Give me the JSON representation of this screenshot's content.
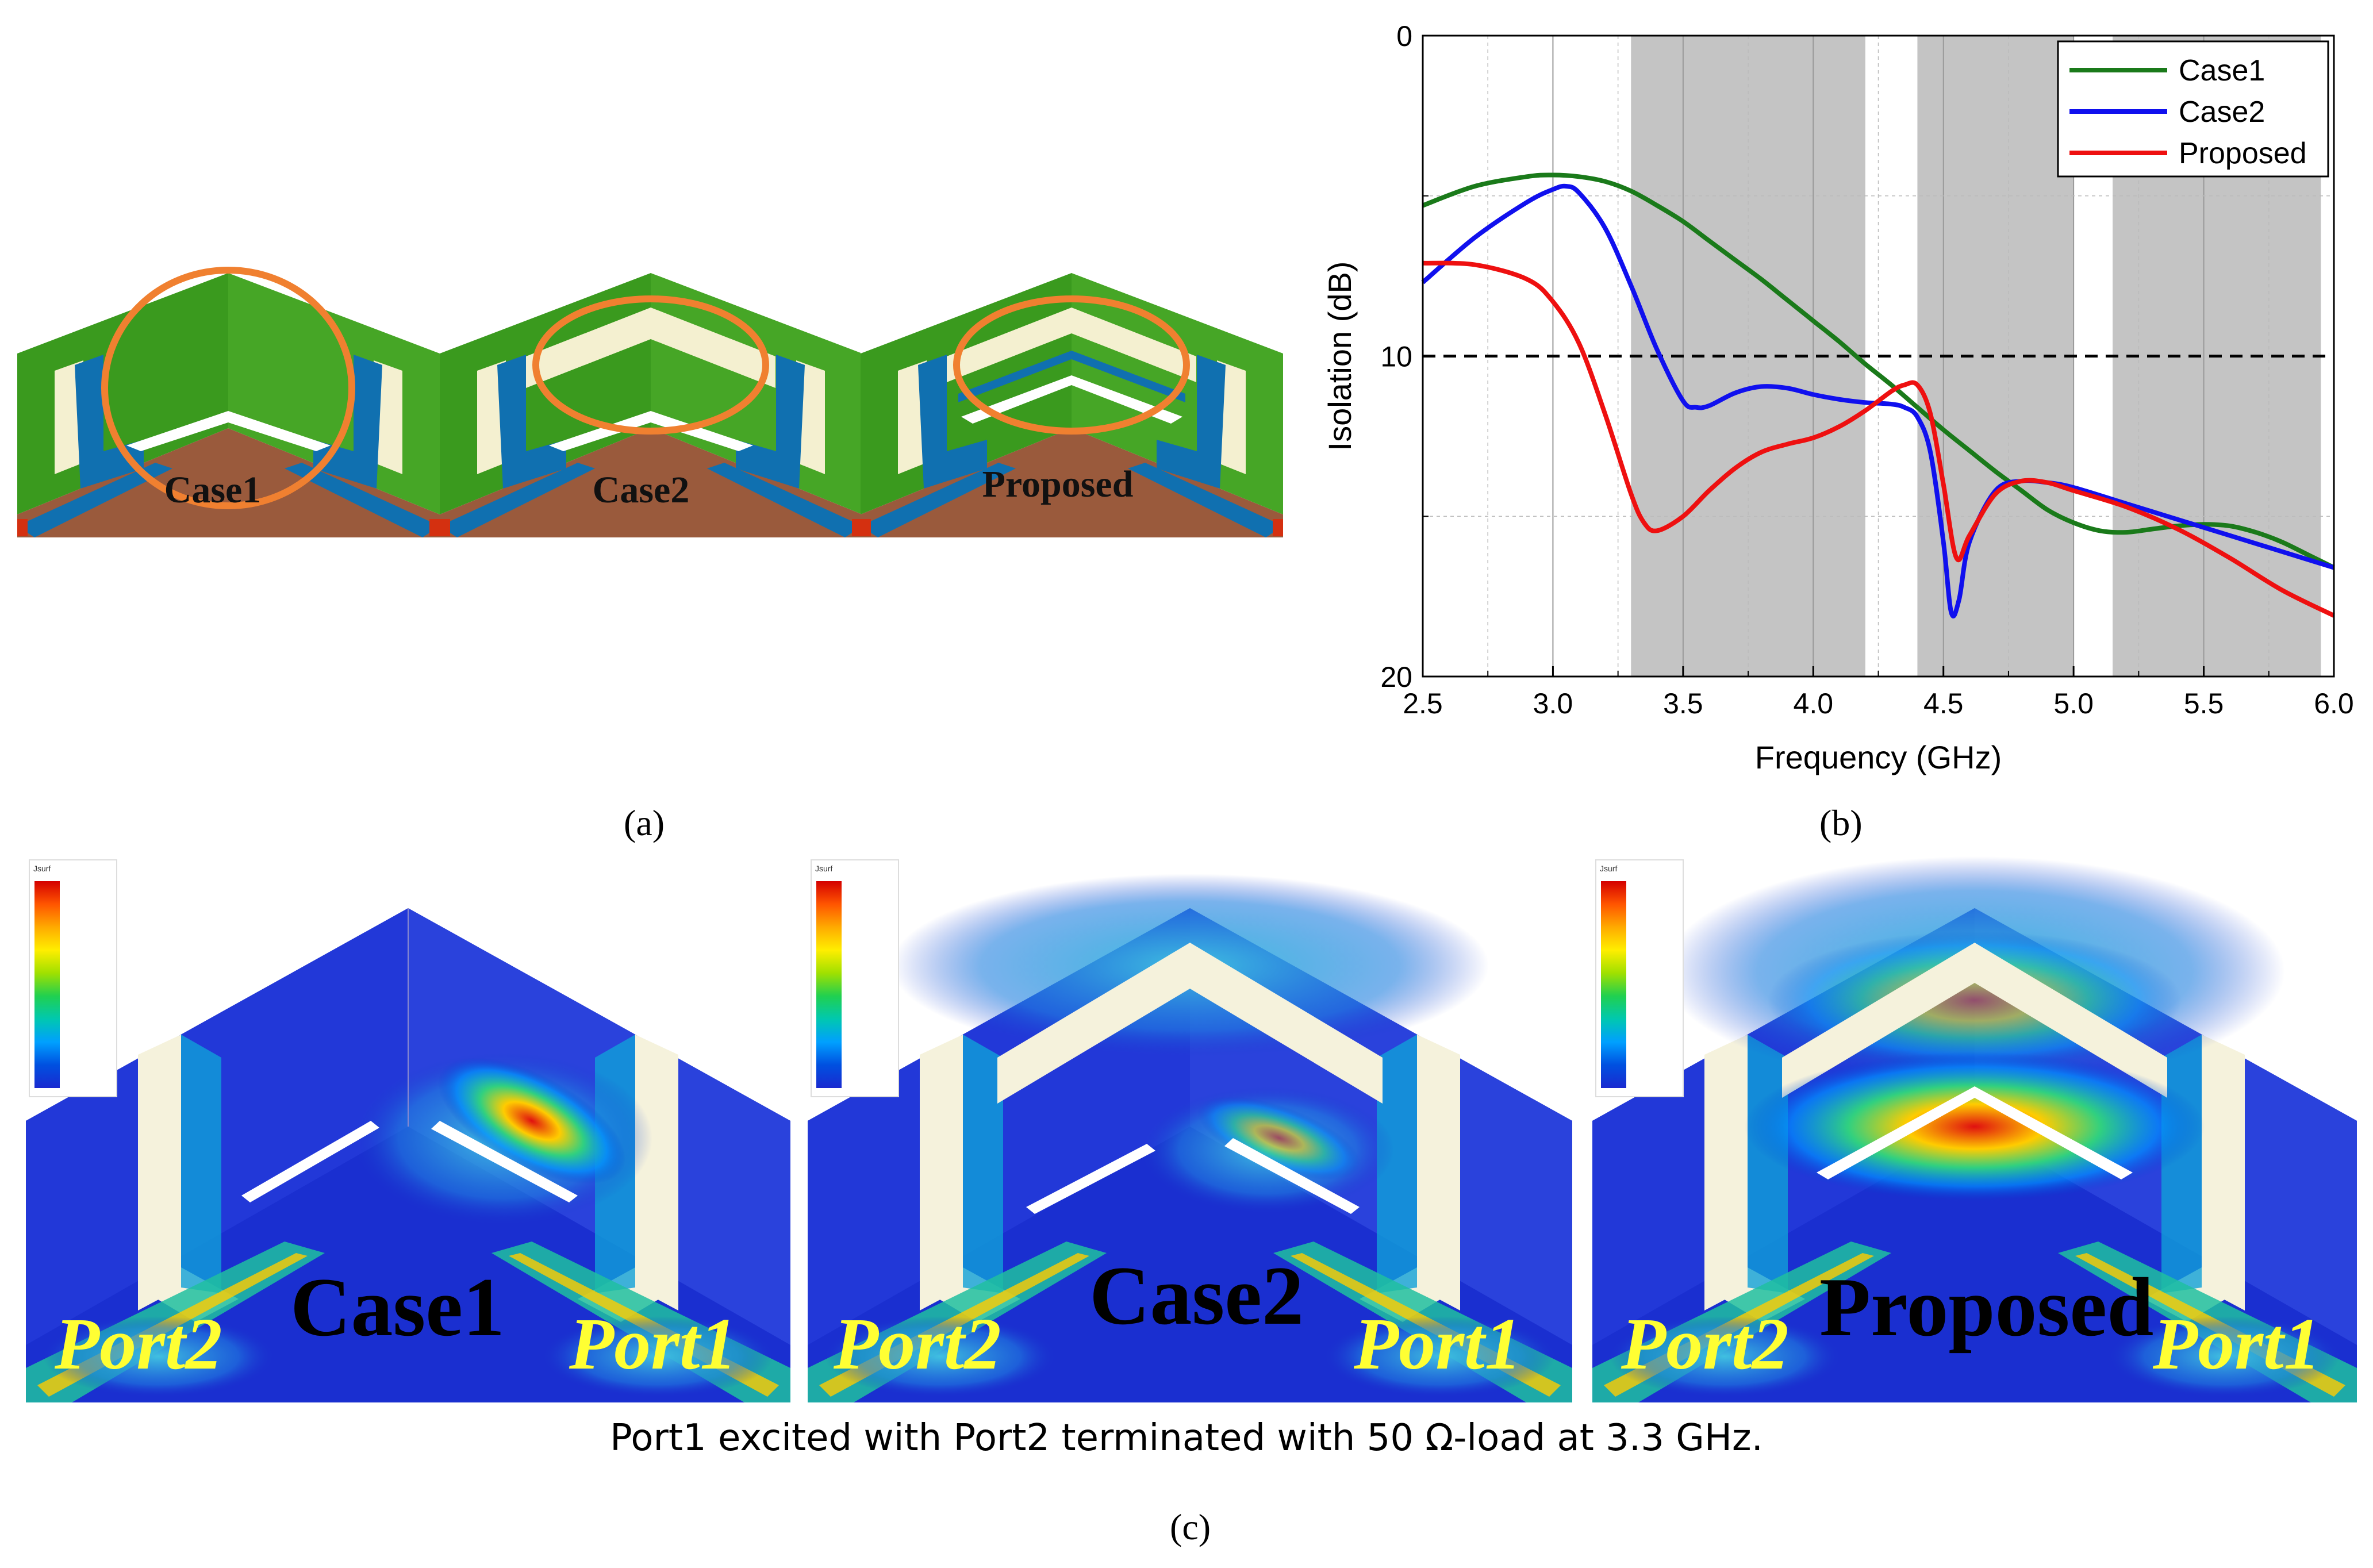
{
  "panel_a": {
    "label": "(a)",
    "cases": [
      {
        "label": "Case1"
      },
      {
        "label": "Case2"
      },
      {
        "label": "Proposed"
      }
    ]
  },
  "panel_b": {
    "label": "(b)"
  },
  "chart_data": {
    "type": "line",
    "xlabel": "Frequency (GHz)",
    "ylabel": "Isolation (dB)",
    "xlim": [
      2.5,
      6.0
    ],
    "ylim": [
      0,
      20
    ],
    "y_inverted": true,
    "x_ticks": [
      "2.5",
      "3.0",
      "3.5",
      "4.0",
      "4.5",
      "5.0",
      "5.5",
      "6.0"
    ],
    "y_ticks": [
      "0",
      "10",
      "20"
    ],
    "reference_line_y": 10,
    "shaded_bands": [
      [
        3.3,
        4.2
      ],
      [
        4.4,
        5.0
      ],
      [
        5.15,
        5.95
      ]
    ],
    "legend_position": "top-right",
    "grid": true,
    "series": [
      {
        "name": "Case1",
        "color": "#1a7a1a",
        "x": [
          2.5,
          2.7,
          2.9,
          3.0,
          3.1,
          3.2,
          3.3,
          3.4,
          3.5,
          3.6,
          3.7,
          3.8,
          3.9,
          4.0,
          4.1,
          4.2,
          4.3,
          4.4,
          4.5,
          4.6,
          4.7,
          4.8,
          4.9,
          5.0,
          5.1,
          5.2,
          5.3,
          5.4,
          5.5,
          5.6,
          5.7,
          5.8,
          5.9,
          6.0
        ],
        "y": [
          5.3,
          4.7,
          4.4,
          4.35,
          4.4,
          4.55,
          4.85,
          5.3,
          5.8,
          6.4,
          7.0,
          7.6,
          8.25,
          8.9,
          9.55,
          10.25,
          10.9,
          11.6,
          12.3,
          12.95,
          13.6,
          14.2,
          14.8,
          15.2,
          15.45,
          15.5,
          15.4,
          15.3,
          15.25,
          15.3,
          15.5,
          15.8,
          16.2,
          16.6
        ]
      },
      {
        "name": "Case2",
        "color": "#1010ee",
        "x": [
          2.5,
          2.7,
          2.9,
          3.0,
          3.05,
          3.1,
          3.2,
          3.3,
          3.4,
          3.5,
          3.55,
          3.6,
          3.7,
          3.8,
          3.9,
          4.0,
          4.1,
          4.2,
          4.3,
          4.35,
          4.4,
          4.45,
          4.5,
          4.53,
          4.56,
          4.6,
          4.7,
          4.8,
          4.9,
          5.0,
          5.2,
          5.4,
          5.6,
          5.8,
          6.0
        ],
        "y": [
          7.7,
          6.3,
          5.2,
          4.8,
          4.7,
          4.9,
          6.0,
          7.8,
          9.8,
          11.4,
          11.6,
          11.55,
          11.15,
          10.95,
          11.0,
          11.2,
          11.35,
          11.45,
          11.5,
          11.6,
          11.9,
          13.0,
          15.8,
          18.0,
          17.6,
          15.8,
          14.2,
          13.9,
          13.95,
          14.1,
          14.6,
          15.1,
          15.6,
          16.1,
          16.6
        ]
      },
      {
        "name": "Proposed",
        "color": "#ee1010",
        "x": [
          2.5,
          2.7,
          2.9,
          3.0,
          3.1,
          3.2,
          3.3,
          3.35,
          3.4,
          3.5,
          3.6,
          3.7,
          3.8,
          3.9,
          4.0,
          4.1,
          4.2,
          4.3,
          4.35,
          4.4,
          4.45,
          4.5,
          4.55,
          4.6,
          4.7,
          4.8,
          4.9,
          5.0,
          5.2,
          5.4,
          5.6,
          5.8,
          6.0
        ],
        "y": [
          7.1,
          7.15,
          7.6,
          8.3,
          9.6,
          11.8,
          14.3,
          15.2,
          15.45,
          15.0,
          14.2,
          13.5,
          13.0,
          12.75,
          12.55,
          12.2,
          11.7,
          11.1,
          10.9,
          10.9,
          11.8,
          14.0,
          16.3,
          15.6,
          14.3,
          13.9,
          13.95,
          14.2,
          14.7,
          15.4,
          16.3,
          17.3,
          18.1
        ]
      }
    ]
  },
  "panel_c": {
    "label": "(c)",
    "caption": "Port1 excited with Port2 terminated with 50 Ω-load at 3.3 GHz.",
    "colorbar_header": "Jsurf",
    "sims": [
      {
        "title": "Case1",
        "port_left": "Port2",
        "port_right": "Port1"
      },
      {
        "title": "Case2",
        "port_left": "Port2",
        "port_right": "Port1"
      },
      {
        "title": "Proposed",
        "port_left": "Port2",
        "port_right": "Port1"
      }
    ]
  }
}
